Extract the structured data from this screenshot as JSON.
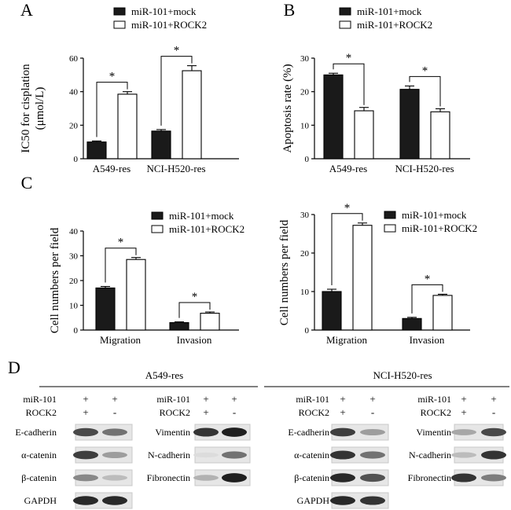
{
  "legend": {
    "mock": "miR-101+mock",
    "rock2": "miR-101+ROCK2"
  },
  "colors": {
    "mock": "#1a1a1a",
    "rock2": "#ffffff"
  },
  "significance": "*",
  "chart_data": [
    {
      "panel": "A",
      "type": "bar",
      "categories": [
        "A549-res",
        "NCI-H520-res"
      ],
      "series": [
        {
          "name": "miR-101+mock",
          "values": [
            10,
            16.5
          ],
          "errors": [
            0.6,
            0.9
          ]
        },
        {
          "name": "miR-101+ROCK2",
          "values": [
            38.5,
            52.5
          ],
          "errors": [
            1.5,
            3.0
          ]
        }
      ],
      "ylabel_lines": [
        "IC50 for cisplation",
        "(μmol/L)"
      ],
      "ylim": [
        0,
        60
      ],
      "yticks": [
        0,
        20,
        40,
        60
      ],
      "legend_position": "top-right"
    },
    {
      "panel": "B",
      "type": "bar",
      "categories": [
        "A549-res",
        "NCI-H520-res"
      ],
      "series": [
        {
          "name": "miR-101+mock",
          "values": [
            25,
            20.7
          ],
          "errors": [
            0.5,
            1.0
          ]
        },
        {
          "name": "miR-101+ROCK2",
          "values": [
            14.3,
            14.0
          ],
          "errors": [
            1.0,
            0.9
          ]
        }
      ],
      "ylabel_lines": [
        "Apoptosis rate (%)"
      ],
      "ylim": [
        0,
        30
      ],
      "yticks": [
        0,
        10,
        20,
        30
      ],
      "legend_position": "top-right"
    },
    {
      "panel": "C",
      "type": "bar",
      "categories": [
        "Migration",
        "Invasion"
      ],
      "series": [
        {
          "name": "miR-101+mock",
          "values": [
            17,
            3
          ],
          "errors": [
            0.6,
            0.3
          ]
        },
        {
          "name": "miR-101+ROCK2",
          "values": [
            28.5,
            6.8
          ],
          "errors": [
            0.8,
            0.5
          ]
        }
      ],
      "ylabel_lines": [
        "Cell numbers per field"
      ],
      "ylim": [
        0,
        40
      ],
      "yticks": [
        0,
        10,
        20,
        30,
        40
      ],
      "legend_position": "top-right"
    },
    {
      "panel": "",
      "type": "bar",
      "categories": [
        "Migration",
        "Invasion"
      ],
      "series": [
        {
          "name": "miR-101+mock",
          "values": [
            10,
            3
          ],
          "errors": [
            0.6,
            0.3
          ]
        },
        {
          "name": "miR-101+ROCK2",
          "values": [
            27.2,
            9.0
          ],
          "errors": [
            0.6,
            0.3
          ]
        }
      ],
      "ylabel_lines": [
        "Cell numbers per field"
      ],
      "ylim": [
        0,
        30
      ],
      "yticks": [
        0,
        10,
        20,
        30
      ],
      "legend_position": "top-right"
    }
  ],
  "panel_d": {
    "label": "D",
    "groups": [
      {
        "title": "A549-res",
        "treatment": {
          "mir_label": "miR-101",
          "rock_label": "ROCK2",
          "mir": [
            "+",
            "+"
          ],
          "rock": [
            "+",
            "-"
          ]
        },
        "left_blots": [
          {
            "label": "E-cadherin",
            "intensity": [
              0.75,
              0.55
            ]
          },
          {
            "label": "α-catenin",
            "intensity": [
              0.8,
              0.35
            ]
          },
          {
            "label": "β-catenin",
            "intensity": [
              0.45,
              0.2
            ]
          },
          {
            "label": "GAPDH",
            "intensity": [
              0.9,
              0.9
            ]
          }
        ],
        "right_blots": [
          {
            "label": "Vimentin",
            "intensity": [
              0.85,
              0.95
            ]
          },
          {
            "label": "N-cadherin",
            "intensity": [
              0.05,
              0.55
            ]
          },
          {
            "label": "Fibronectin",
            "intensity": [
              0.25,
              0.95
            ]
          }
        ]
      },
      {
        "title": "NCI-H520-res",
        "treatment": {
          "mir_label": "miR-101",
          "rock_label": "ROCK2",
          "mir": [
            "+",
            "+"
          ],
          "rock": [
            "+",
            "-"
          ]
        },
        "left_blots": [
          {
            "label": "E-cadherin",
            "intensity": [
              0.8,
              0.35
            ]
          },
          {
            "label": "α-catenin",
            "intensity": [
              0.85,
              0.55
            ]
          },
          {
            "label": "β-catenin",
            "intensity": [
              0.9,
              0.7
            ]
          },
          {
            "label": "GAPDH",
            "intensity": [
              0.9,
              0.85
            ]
          }
        ],
        "right_blots": [
          {
            "label": "Vimentin",
            "intensity": [
              0.3,
              0.75
            ]
          },
          {
            "label": "N-cadherin",
            "intensity": [
              0.2,
              0.85
            ]
          },
          {
            "label": "Fibronectin",
            "intensity": [
              0.85,
              0.5
            ]
          }
        ]
      }
    ]
  }
}
